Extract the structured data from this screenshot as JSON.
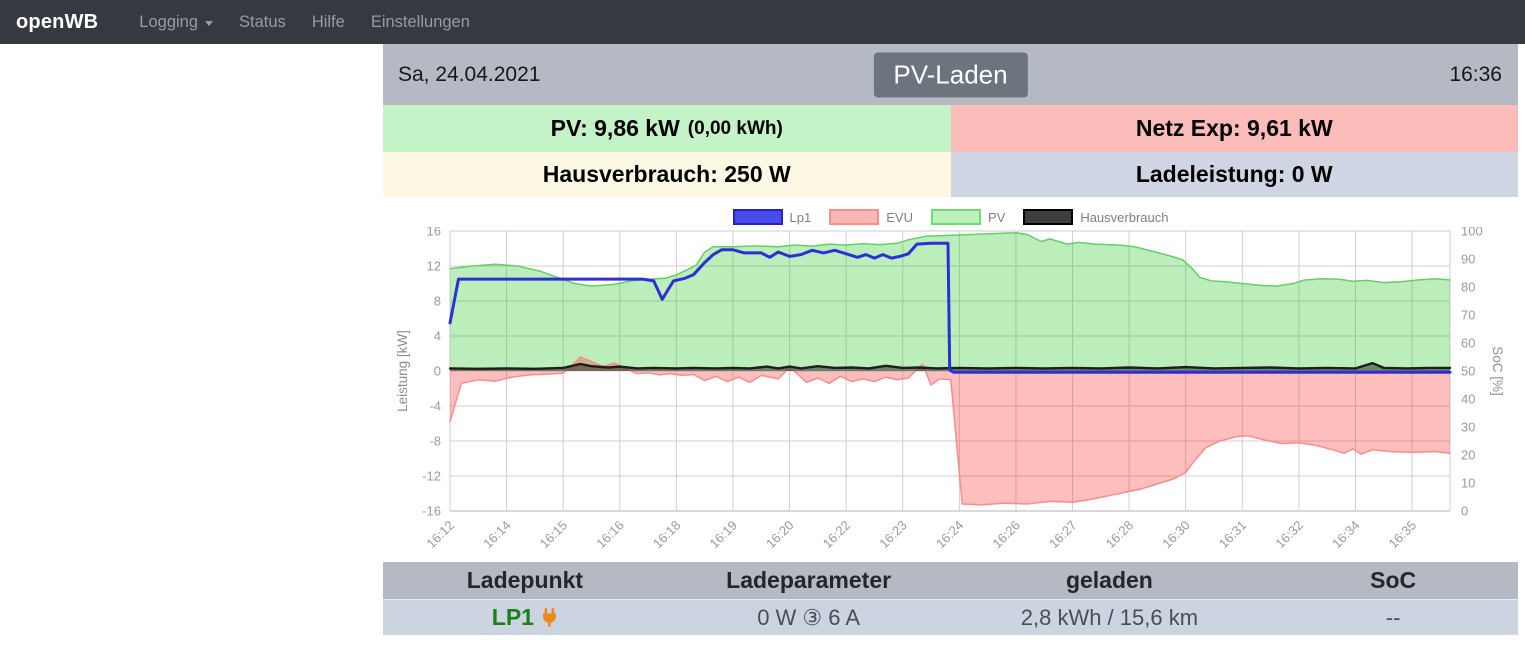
{
  "navbar": {
    "brand": "openWB",
    "items": [
      {
        "label": "Logging"
      },
      {
        "label": "Status"
      },
      {
        "label": "Hilfe"
      },
      {
        "label": "Einstellungen"
      }
    ]
  },
  "header": {
    "date": "Sa, 24.04.2021",
    "mode_button": "PV-Laden",
    "time": "16:36"
  },
  "info_cells": {
    "pv_label": "PV: 9,86 kW",
    "pv_energy": "(0,00 kWh)",
    "netz_label": "Netz Exp: 9,61 kW",
    "haus_label": "Hausverbrauch: 250 W",
    "lade_label": "Ladeleistung: 0 W",
    "colors": {
      "pv": "#c3f3c6",
      "netz": "#fbbcba",
      "haus": "#fcf8e3",
      "lade": "#cfd5e3"
    }
  },
  "chart_data": {
    "type": "line",
    "ylabel_left": "Leistung [kW]",
    "ylabel_right": "SoC [%]",
    "ylim": [
      -16,
      16
    ],
    "grid": true,
    "x_ticks": [
      "16:12",
      "16:14",
      "16:15",
      "16:16",
      "16:18",
      "16:19",
      "16:20",
      "16:22",
      "16:23",
      "16:24",
      "16:26",
      "16:27",
      "16:28",
      "16:30",
      "16:31",
      "16:32",
      "16:34",
      "16:35"
    ],
    "x_extent": 17.67,
    "y_ticks_left": [
      16,
      12,
      8,
      4,
      0,
      -4,
      -8,
      -12,
      -16
    ],
    "y_ticks_right": [
      100,
      90,
      80,
      70,
      60,
      50,
      40,
      30,
      20,
      10,
      0
    ],
    "legend": [
      {
        "name": "Lp1",
        "fill": "#4a4aec",
        "border": "#2222c8"
      },
      {
        "name": "EVU",
        "fill": "#fdb6b6",
        "border": "#f88f8f"
      },
      {
        "name": "PV",
        "fill": "#baf3ba",
        "border": "#77d877"
      },
      {
        "name": "Hausverbrauch",
        "fill": "#3e3e3e",
        "border": "#000000"
      }
    ],
    "series": [
      {
        "name": "PV",
        "stroke": "#67ce67",
        "width": 1.5,
        "fill": "rgba(30,200,30,0.3)",
        "points": [
          [
            0,
            11.7
          ],
          [
            0.4,
            12.0
          ],
          [
            0.8,
            12.2
          ],
          [
            1.2,
            12.0
          ],
          [
            1.6,
            11.4
          ],
          [
            1.9,
            10.7
          ],
          [
            2.2,
            10.0
          ],
          [
            2.5,
            9.7
          ],
          [
            2.9,
            9.9
          ],
          [
            3.2,
            10.3
          ],
          [
            3.5,
            10.5
          ],
          [
            3.8,
            10.6
          ],
          [
            4.0,
            11.0
          ],
          [
            4.2,
            11.6
          ],
          [
            4.35,
            12.1
          ],
          [
            4.5,
            13.6
          ],
          [
            4.65,
            14.2
          ],
          [
            5.0,
            14.2
          ],
          [
            5.4,
            14.3
          ],
          [
            5.8,
            14.2
          ],
          [
            6.1,
            14.4
          ],
          [
            6.4,
            14.25
          ],
          [
            6.7,
            14.5
          ],
          [
            7.0,
            14.4
          ],
          [
            7.3,
            14.55
          ],
          [
            7.6,
            14.45
          ],
          [
            7.9,
            14.6
          ],
          [
            8.1,
            15.0
          ],
          [
            8.4,
            15.4
          ],
          [
            8.8,
            15.5
          ],
          [
            9.2,
            15.6
          ],
          [
            9.6,
            15.7
          ],
          [
            10.0,
            15.8
          ],
          [
            10.2,
            15.6
          ],
          [
            10.45,
            14.8
          ],
          [
            10.6,
            15.1
          ],
          [
            10.75,
            14.8
          ],
          [
            10.9,
            14.5
          ],
          [
            11.1,
            14.7
          ],
          [
            11.4,
            14.5
          ],
          [
            11.8,
            14.4
          ],
          [
            12.1,
            14.2
          ],
          [
            12.4,
            13.7
          ],
          [
            12.7,
            13.2
          ],
          [
            12.95,
            12.7
          ],
          [
            13.1,
            11.8
          ],
          [
            13.25,
            10.7
          ],
          [
            13.45,
            10.3
          ],
          [
            13.7,
            10.2
          ],
          [
            14.0,
            10.0
          ],
          [
            14.3,
            9.8
          ],
          [
            14.6,
            9.7
          ],
          [
            14.9,
            10.0
          ],
          [
            15.1,
            10.4
          ],
          [
            15.4,
            10.55
          ],
          [
            15.7,
            10.5
          ],
          [
            15.95,
            10.25
          ],
          [
            16.2,
            10.35
          ],
          [
            16.5,
            10.1
          ],
          [
            16.8,
            10.2
          ],
          [
            17.1,
            10.4
          ],
          [
            17.4,
            10.55
          ],
          [
            17.67,
            10.4
          ]
        ]
      },
      {
        "name": "EVU",
        "stroke": "#f98c8c",
        "width": 1.5,
        "fill": "rgba(255,40,40,0.3)",
        "points": [
          [
            0,
            -5.8
          ],
          [
            0.2,
            -1.4
          ],
          [
            0.5,
            -1.0
          ],
          [
            0.8,
            -1.15
          ],
          [
            1.1,
            -0.7
          ],
          [
            1.4,
            -0.45
          ],
          [
            1.7,
            -0.35
          ],
          [
            2.0,
            -0.25
          ],
          [
            2.1,
            0.3
          ],
          [
            2.3,
            1.6
          ],
          [
            2.5,
            1.1
          ],
          [
            2.7,
            0.5
          ],
          [
            2.9,
            0.9
          ],
          [
            3.1,
            0.3
          ],
          [
            3.3,
            -0.3
          ],
          [
            3.5,
            -0.2
          ],
          [
            3.7,
            -0.45
          ],
          [
            3.9,
            -0.3
          ],
          [
            4.1,
            -0.5
          ],
          [
            4.3,
            -0.4
          ],
          [
            4.5,
            -1.1
          ],
          [
            4.7,
            -0.6
          ],
          [
            4.9,
            -1.2
          ],
          [
            5.1,
            -0.7
          ],
          [
            5.3,
            -1.3
          ],
          [
            5.5,
            -0.5
          ],
          [
            5.8,
            -0.9
          ],
          [
            6.0,
            0.4
          ],
          [
            6.15,
            -0.4
          ],
          [
            6.3,
            -1.3
          ],
          [
            6.5,
            -0.8
          ],
          [
            6.7,
            -1.4
          ],
          [
            6.9,
            -0.6
          ],
          [
            7.1,
            -1.2
          ],
          [
            7.3,
            -0.9
          ],
          [
            7.5,
            -1.2
          ],
          [
            7.7,
            -0.7
          ],
          [
            7.9,
            -1.0
          ],
          [
            8.1,
            -0.8
          ],
          [
            8.35,
            0.8
          ],
          [
            8.5,
            -1.6
          ],
          [
            8.65,
            -0.9
          ],
          [
            8.85,
            -1.0
          ],
          [
            9.05,
            -15.2
          ],
          [
            9.4,
            -15.3
          ],
          [
            9.8,
            -15.1
          ],
          [
            10.2,
            -15.2
          ],
          [
            10.6,
            -14.9
          ],
          [
            11.0,
            -15.0
          ],
          [
            11.3,
            -14.7
          ],
          [
            11.6,
            -14.3
          ],
          [
            11.9,
            -13.9
          ],
          [
            12.2,
            -13.5
          ],
          [
            12.5,
            -12.9
          ],
          [
            12.8,
            -12.3
          ],
          [
            13.0,
            -11.6
          ],
          [
            13.15,
            -10.3
          ],
          [
            13.35,
            -8.8
          ],
          [
            13.6,
            -8.0
          ],
          [
            13.9,
            -7.5
          ],
          [
            14.1,
            -7.4
          ],
          [
            14.4,
            -7.9
          ],
          [
            14.7,
            -8.3
          ],
          [
            15.0,
            -8.2
          ],
          [
            15.3,
            -8.5
          ],
          [
            15.6,
            -9.0
          ],
          [
            15.8,
            -9.4
          ],
          [
            15.95,
            -8.9
          ],
          [
            16.1,
            -9.5
          ],
          [
            16.3,
            -9.0
          ],
          [
            16.6,
            -9.2
          ],
          [
            17.0,
            -9.3
          ],
          [
            17.4,
            -9.2
          ],
          [
            17.67,
            -9.4
          ]
        ]
      },
      {
        "name": "Hausverbrauch",
        "stroke": "#1d1d1d",
        "width": 2.4,
        "fill": "rgba(45,45,45,0.55)",
        "points": [
          [
            0,
            0.3
          ],
          [
            0.5,
            0.25
          ],
          [
            1.0,
            0.3
          ],
          [
            1.5,
            0.25
          ],
          [
            2.0,
            0.35
          ],
          [
            2.3,
            0.8
          ],
          [
            2.5,
            0.55
          ],
          [
            2.8,
            0.4
          ],
          [
            3.0,
            0.5
          ],
          [
            3.3,
            0.3
          ],
          [
            3.6,
            0.35
          ],
          [
            4.0,
            0.3
          ],
          [
            4.3,
            0.35
          ],
          [
            4.7,
            0.3
          ],
          [
            5.0,
            0.35
          ],
          [
            5.3,
            0.3
          ],
          [
            5.6,
            0.5
          ],
          [
            5.8,
            0.3
          ],
          [
            6.0,
            0.5
          ],
          [
            6.2,
            0.3
          ],
          [
            6.5,
            0.55
          ],
          [
            6.8,
            0.35
          ],
          [
            7.1,
            0.4
          ],
          [
            7.4,
            0.3
          ],
          [
            7.7,
            0.6
          ],
          [
            8.0,
            0.35
          ],
          [
            8.3,
            0.4
          ],
          [
            8.6,
            0.3
          ],
          [
            9.0,
            0.35
          ],
          [
            9.5,
            0.3
          ],
          [
            10.0,
            0.35
          ],
          [
            10.5,
            0.3
          ],
          [
            11.0,
            0.35
          ],
          [
            11.5,
            0.3
          ],
          [
            12.0,
            0.4
          ],
          [
            12.5,
            0.3
          ],
          [
            13.0,
            0.45
          ],
          [
            13.5,
            0.3
          ],
          [
            14.0,
            0.35
          ],
          [
            14.5,
            0.4
          ],
          [
            15.0,
            0.3
          ],
          [
            15.5,
            0.35
          ],
          [
            16.0,
            0.3
          ],
          [
            16.3,
            0.9
          ],
          [
            16.5,
            0.35
          ],
          [
            16.9,
            0.3
          ],
          [
            17.3,
            0.35
          ],
          [
            17.67,
            0.35
          ]
        ]
      },
      {
        "name": "Lp1",
        "stroke": "#2e2ed8",
        "width": 3,
        "fill": null,
        "points": [
          [
            0,
            5.5
          ],
          [
            0.15,
            10.5
          ],
          [
            3.4,
            10.5
          ],
          [
            3.6,
            10.3
          ],
          [
            3.75,
            8.2
          ],
          [
            3.95,
            10.3
          ],
          [
            4.15,
            10.6
          ],
          [
            4.3,
            11.0
          ],
          [
            4.5,
            12.4
          ],
          [
            4.65,
            13.3
          ],
          [
            4.8,
            13.85
          ],
          [
            5.0,
            13.85
          ],
          [
            5.2,
            13.5
          ],
          [
            5.5,
            13.5
          ],
          [
            5.65,
            13.0
          ],
          [
            5.8,
            13.6
          ],
          [
            6.0,
            13.1
          ],
          [
            6.2,
            13.3
          ],
          [
            6.4,
            13.8
          ],
          [
            6.6,
            13.5
          ],
          [
            6.8,
            13.8
          ],
          [
            7.0,
            13.4
          ],
          [
            7.2,
            13.0
          ],
          [
            7.35,
            13.3
          ],
          [
            7.5,
            12.9
          ],
          [
            7.65,
            13.3
          ],
          [
            7.8,
            12.9
          ],
          [
            7.95,
            13.1
          ],
          [
            8.1,
            13.4
          ],
          [
            8.25,
            14.5
          ],
          [
            8.5,
            14.6
          ],
          [
            8.8,
            14.6
          ],
          [
            8.83,
            0.1
          ],
          [
            8.9,
            -0.15
          ],
          [
            17.67,
            -0.15
          ]
        ]
      }
    ]
  },
  "table": {
    "headers": [
      "Ladepunkt",
      "Ladeparameter",
      "geladen",
      "SoC"
    ],
    "row": {
      "ladepunkt": "LP1",
      "plug_icon_color": "#f0891a",
      "ladeparameter": "0 W ③ 6 A",
      "geladen": "2,8 kWh / 15,6 km",
      "soc": "--"
    }
  }
}
